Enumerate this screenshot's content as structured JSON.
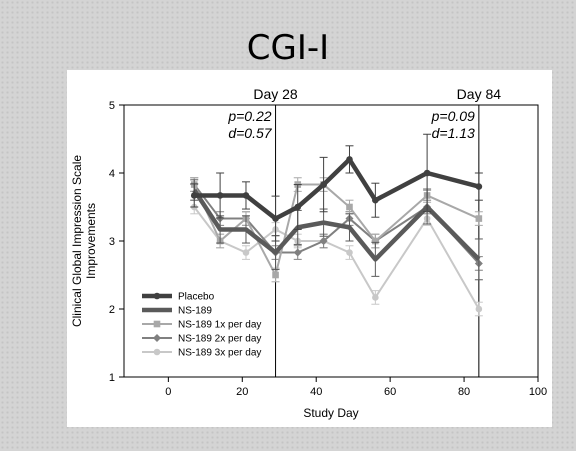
{
  "slide": {
    "title": "CGI-I"
  },
  "chart_data": {
    "type": "line",
    "xlabel": "Study Day",
    "ylabel_lines": [
      "Clinical Global Impression Scale",
      "Improvements"
    ],
    "xlim": [
      -12,
      100
    ],
    "ylim": [
      1,
      5
    ],
    "xticks": [
      0,
      20,
      40,
      60,
      80,
      100
    ],
    "yticks": [
      1,
      2,
      3,
      4,
      5
    ],
    "grid": false,
    "legend_position": "lower-left",
    "reference_lines": [
      {
        "x": 29,
        "label": "Day 28",
        "p": "p=0.22",
        "d": "d=0.57"
      },
      {
        "x": 84,
        "label": "Day 84",
        "p": "p=0.09",
        "d": "d=1.13"
      }
    ],
    "series": [
      {
        "name": "Placebo",
        "color": "#404040",
        "marker": "circle",
        "width": 4.5,
        "x": [
          7,
          14,
          21,
          29,
          35,
          42,
          49,
          56,
          70,
          84
        ],
        "y": [
          3.67,
          3.67,
          3.67,
          3.33,
          3.5,
          3.83,
          4.2,
          3.6,
          4.0,
          3.8
        ],
        "err": [
          0.17,
          0.33,
          0.2,
          0.33,
          0.33,
          0.4,
          0.2,
          0.25,
          0.57,
          0.2
        ]
      },
      {
        "name": "NS-189",
        "color": "#5a5a5a",
        "marker": "none",
        "width": 4.5,
        "x": [
          7,
          14,
          21,
          29,
          35,
          42,
          49,
          56,
          70,
          84
        ],
        "y": [
          3.75,
          3.17,
          3.17,
          2.83,
          3.2,
          3.27,
          3.2,
          2.73,
          3.5,
          2.73
        ],
        "err": [
          0.15,
          0.2,
          0.2,
          0.25,
          0.25,
          0.2,
          0.2,
          0.25,
          0.25,
          0.3
        ]
      },
      {
        "name": "NS-189 1x per day",
        "color": "#a8a8a8",
        "marker": "square",
        "width": 2,
        "x": [
          7,
          14,
          21,
          29,
          35,
          42,
          49,
          56,
          70,
          84
        ],
        "y": [
          3.83,
          3.0,
          3.33,
          2.5,
          3.83,
          3.83,
          3.5,
          3.0,
          3.67,
          3.33
        ],
        "err": [
          0.1,
          0.1,
          0.1,
          0.1,
          0.1,
          0.1,
          0.1,
          0.1,
          0.1,
          0.1
        ]
      },
      {
        "name": "NS-189 2x per day",
        "color": "#808080",
        "marker": "diamond",
        "width": 2,
        "x": [
          7,
          14,
          21,
          29,
          35,
          42,
          49,
          56,
          70,
          84
        ],
        "y": [
          3.83,
          3.33,
          3.33,
          2.83,
          2.83,
          3.0,
          3.33,
          3.0,
          3.5,
          2.67
        ],
        "err": [
          0.1,
          0.1,
          0.1,
          0.1,
          0.1,
          0.1,
          0.1,
          0.1,
          0.1,
          0.1
        ]
      },
      {
        "name": "NS-189 3x per day",
        "color": "#c8c8c8",
        "marker": "circle",
        "width": 2,
        "x": [
          7,
          14,
          21,
          29,
          35,
          42,
          49,
          56,
          70,
          84
        ],
        "y": [
          3.5,
          3.0,
          2.83,
          3.17,
          3.0,
          3.0,
          2.83,
          2.17,
          3.33,
          2.0
        ],
        "err": [
          0.1,
          0.1,
          0.1,
          0.1,
          0.1,
          0.1,
          0.1,
          0.1,
          0.1,
          0.1
        ]
      }
    ]
  }
}
